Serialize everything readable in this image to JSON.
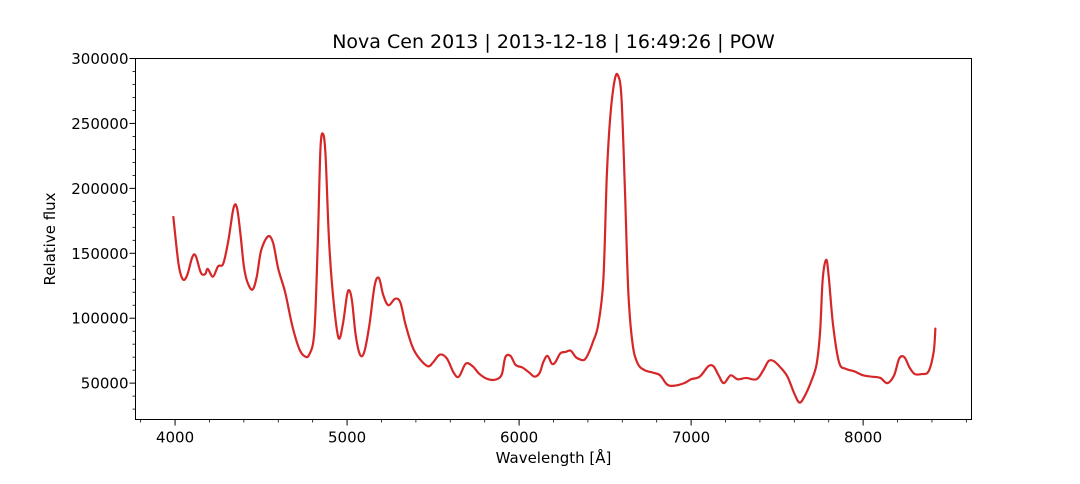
{
  "chart_data": {
    "type": "line",
    "title": "Nova Cen 2013 | 2013-12-18 | 16:49:26 | POW",
    "xlabel": "Wavelength [Å]",
    "ylabel": "Relative flux",
    "xlim": [
      3770,
      8630
    ],
    "ylim": [
      22000,
      300000
    ],
    "x_ticks": [
      4000,
      5000,
      6000,
      7000,
      8000
    ],
    "y_ticks": [
      50000,
      100000,
      150000,
      200000,
      250000,
      300000
    ],
    "grid": false,
    "legend": "none",
    "series": [
      {
        "color": "#d62728",
        "points": [
          [
            3990,
            178000
          ],
          [
            4020,
            142000
          ],
          [
            4045,
            130000
          ],
          [
            4070,
            133000
          ],
          [
            4100,
            147000
          ],
          [
            4120,
            148000
          ],
          [
            4150,
            135000
          ],
          [
            4175,
            134000
          ],
          [
            4190,
            138000
          ],
          [
            4220,
            132000
          ],
          [
            4250,
            140000
          ],
          [
            4280,
            142000
          ],
          [
            4310,
            160000
          ],
          [
            4340,
            185000
          ],
          [
            4360,
            185000
          ],
          [
            4380,
            165000
          ],
          [
            4400,
            140000
          ],
          [
            4420,
            128000
          ],
          [
            4450,
            122000
          ],
          [
            4475,
            132000
          ],
          [
            4500,
            152000
          ],
          [
            4540,
            163000
          ],
          [
            4570,
            158000
          ],
          [
            4600,
            138000
          ],
          [
            4640,
            120000
          ],
          [
            4680,
            95000
          ],
          [
            4720,
            77000
          ],
          [
            4750,
            71000
          ],
          [
            4780,
            72000
          ],
          [
            4810,
            90000
          ],
          [
            4830,
            160000
          ],
          [
            4845,
            230000
          ],
          [
            4860,
            242000
          ],
          [
            4875,
            225000
          ],
          [
            4895,
            160000
          ],
          [
            4920,
            115000
          ],
          [
            4950,
            85000
          ],
          [
            4975,
            95000
          ],
          [
            5000,
            118000
          ],
          [
            5015,
            121000
          ],
          [
            5030,
            112000
          ],
          [
            5050,
            87000
          ],
          [
            5075,
            72000
          ],
          [
            5100,
            74000
          ],
          [
            5130,
            95000
          ],
          [
            5160,
            125000
          ],
          [
            5185,
            131000
          ],
          [
            5210,
            118000
          ],
          [
            5240,
            110000
          ],
          [
            5280,
            115000
          ],
          [
            5310,
            112000
          ],
          [
            5340,
            95000
          ],
          [
            5380,
            78000
          ],
          [
            5420,
            69000
          ],
          [
            5470,
            63000
          ],
          [
            5500,
            66000
          ],
          [
            5540,
            72000
          ],
          [
            5580,
            69000
          ],
          [
            5620,
            58000
          ],
          [
            5650,
            55000
          ],
          [
            5690,
            65000
          ],
          [
            5730,
            63000
          ],
          [
            5770,
            57000
          ],
          [
            5820,
            53000
          ],
          [
            5870,
            53000
          ],
          [
            5900,
            57000
          ],
          [
            5920,
            70000
          ],
          [
            5950,
            71000
          ],
          [
            5980,
            64000
          ],
          [
            6020,
            62000
          ],
          [
            6060,
            58000
          ],
          [
            6090,
            55000
          ],
          [
            6120,
            58000
          ],
          [
            6140,
            66000
          ],
          [
            6165,
            71000
          ],
          [
            6190,
            65000
          ],
          [
            6210,
            66000
          ],
          [
            6240,
            73000
          ],
          [
            6270,
            74000
          ],
          [
            6300,
            75000
          ],
          [
            6330,
            70000
          ],
          [
            6360,
            68000
          ],
          [
            6380,
            68000
          ],
          [
            6400,
            72000
          ],
          [
            6430,
            82000
          ],
          [
            6460,
            95000
          ],
          [
            6490,
            130000
          ],
          [
            6510,
            210000
          ],
          [
            6530,
            255000
          ],
          [
            6555,
            283000
          ],
          [
            6575,
            287000
          ],
          [
            6595,
            270000
          ],
          [
            6615,
            200000
          ],
          [
            6635,
            120000
          ],
          [
            6660,
            80000
          ],
          [
            6690,
            65000
          ],
          [
            6730,
            60000
          ],
          [
            6780,
            58000
          ],
          [
            6820,
            56000
          ],
          [
            6860,
            49000
          ],
          [
            6900,
            48000
          ],
          [
            6960,
            50000
          ],
          [
            7000,
            53000
          ],
          [
            7050,
            55000
          ],
          [
            7100,
            63000
          ],
          [
            7130,
            63000
          ],
          [
            7160,
            56000
          ],
          [
            7190,
            50000
          ],
          [
            7230,
            56000
          ],
          [
            7270,
            53000
          ],
          [
            7320,
            54000
          ],
          [
            7380,
            53000
          ],
          [
            7420,
            60000
          ],
          [
            7450,
            67000
          ],
          [
            7480,
            67000
          ],
          [
            7520,
            62000
          ],
          [
            7560,
            55000
          ],
          [
            7600,
            42000
          ],
          [
            7630,
            35000
          ],
          [
            7660,
            40000
          ],
          [
            7700,
            52000
          ],
          [
            7730,
            65000
          ],
          [
            7750,
            90000
          ],
          [
            7765,
            130000
          ],
          [
            7785,
            145000
          ],
          [
            7800,
            132000
          ],
          [
            7825,
            95000
          ],
          [
            7860,
            66000
          ],
          [
            7900,
            61000
          ],
          [
            7950,
            59000
          ],
          [
            8000,
            56000
          ],
          [
            8050,
            55000
          ],
          [
            8100,
            54000
          ],
          [
            8140,
            50000
          ],
          [
            8180,
            56000
          ],
          [
            8210,
            69000
          ],
          [
            8240,
            70000
          ],
          [
            8270,
            62000
          ],
          [
            8300,
            57000
          ],
          [
            8340,
            57000
          ],
          [
            8380,
            59000
          ],
          [
            8410,
            74000
          ],
          [
            8420,
            92000
          ]
        ]
      }
    ]
  }
}
